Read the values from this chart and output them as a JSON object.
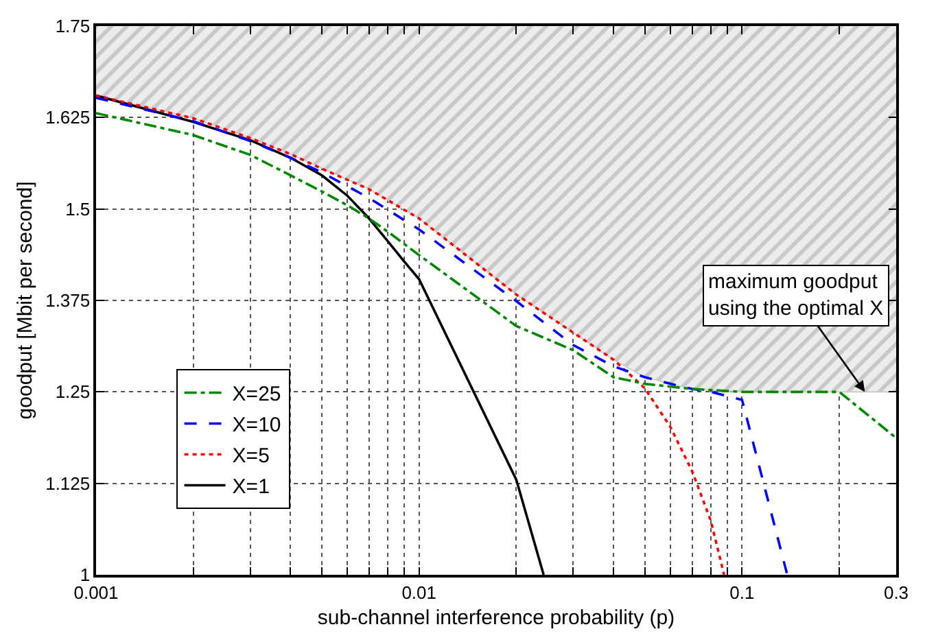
{
  "chart_data": {
    "type": "line",
    "xlabel": "sub-channel interference probability (p)",
    "ylabel": "goodput [Mbit per second]",
    "log": "x",
    "xlim": [
      0.001,
      0.3
    ],
    "ylim": [
      1,
      1.75
    ],
    "xticks": [
      0.001,
      {
        "value": 0.002,
        "label": null
      },
      {
        "value": 0.003,
        "label": null
      },
      {
        "value": 0.004,
        "label": null
      },
      {
        "value": 0.005,
        "label": null
      },
      {
        "value": 0.006,
        "label": null
      },
      {
        "value": 0.007,
        "label": null
      },
      {
        "value": 0.008,
        "label": null
      },
      {
        "value": 0.009,
        "label": null
      },
      0.01,
      {
        "value": 0.02,
        "label": null
      },
      {
        "value": 0.03,
        "label": null
      },
      {
        "value": 0.04,
        "label": null
      },
      {
        "value": 0.05,
        "label": null
      },
      {
        "value": 0.06,
        "label": null
      },
      {
        "value": 0.07,
        "label": null
      },
      {
        "value": 0.08,
        "label": null
      },
      {
        "value": 0.09,
        "label": null
      },
      0.1,
      {
        "value": 0.2,
        "label": null
      },
      0.3
    ],
    "yticks": [
      1,
      1.125,
      1.25,
      1.375,
      1.5,
      1.625,
      1.75
    ],
    "grid": true,
    "legend": "bottom left",
    "marker": "none",
    "series": [
      {
        "color": "#c8c8c8",
        "x": [
          0.001,
          0.002,
          0.003,
          0.004,
          0.005,
          0.007,
          0.01,
          0.02,
          0.03,
          0.04,
          0.05,
          0.06,
          0.07,
          0.1,
          0.3
        ],
        "values": [
          1.655,
          1.624,
          1.597,
          1.575,
          1.556,
          1.527,
          1.487,
          1.383,
          1.331,
          1.294,
          1.27,
          1.261,
          1.254,
          1.25,
          1.25
        ],
        "lower": [
          1.655,
          1.624,
          1.597,
          1.575,
          1.556,
          1.527,
          1.487,
          1.383,
          1.331,
          1.294,
          1.27,
          1.261,
          1.254,
          1.25,
          1.25
        ],
        "upper": [
          1.75,
          1.75,
          1.75,
          1.75,
          1.75,
          1.75,
          1.75,
          1.75,
          1.75,
          1.75,
          1.75,
          1.75,
          1.75,
          1.75,
          1.75
        ]
      },
      {
        "name": "X=1",
        "color": "#000000",
        "line_style": "solid",
        "x": [
          0.001,
          0.002,
          0.003,
          0.004,
          0.005,
          0.006,
          0.007,
          0.008,
          0.009,
          0.01,
          0.02,
          0.0243
        ],
        "values": [
          1.655,
          1.619,
          1.594,
          1.57,
          1.546,
          1.518,
          1.487,
          1.456,
          1.428,
          1.404,
          1.13,
          1.0
        ]
      },
      {
        "name": "X=5",
        "color": "#ff0000",
        "line_style": "dotted",
        "x": [
          0.001,
          0.002,
          0.003,
          0.004,
          0.005,
          0.007,
          0.01,
          0.02,
          0.03,
          0.04,
          0.05,
          0.06,
          0.07,
          0.08,
          0.088
        ],
        "values": [
          1.655,
          1.624,
          1.597,
          1.575,
          1.555,
          1.527,
          1.487,
          1.383,
          1.331,
          1.294,
          1.255,
          1.202,
          1.142,
          1.074,
          1.0
        ]
      },
      {
        "name": "X=10",
        "color": "#0000ff",
        "line_style": "dashed",
        "x": [
          0.001,
          0.002,
          0.003,
          0.004,
          0.005,
          0.007,
          0.01,
          0.02,
          0.03,
          0.04,
          0.05,
          0.06,
          0.07,
          0.08,
          0.1,
          0.138
        ],
        "values": [
          1.652,
          1.62,
          1.593,
          1.57,
          1.55,
          1.515,
          1.472,
          1.374,
          1.314,
          1.285,
          1.27,
          1.261,
          1.254,
          1.25,
          1.239,
          1.0
        ]
      },
      {
        "name": "X=25",
        "color": "#008800",
        "line_style": "dashdot",
        "x": [
          0.001,
          0.002,
          0.003,
          0.004,
          0.005,
          0.006,
          0.007,
          0.008,
          0.01,
          0.02,
          0.03,
          0.04,
          0.05,
          0.07,
          0.1,
          0.2,
          0.3
        ],
        "values": [
          1.631,
          1.601,
          1.574,
          1.546,
          1.524,
          1.505,
          1.487,
          1.469,
          1.437,
          1.34,
          1.307,
          1.27,
          1.261,
          1.254,
          1.25,
          1.25,
          1.187
        ]
      }
    ],
    "annotations": [
      {
        "text": "maximum goodput\nusing the optimal X",
        "x": 0.24,
        "y": 1.25
      }
    ]
  }
}
